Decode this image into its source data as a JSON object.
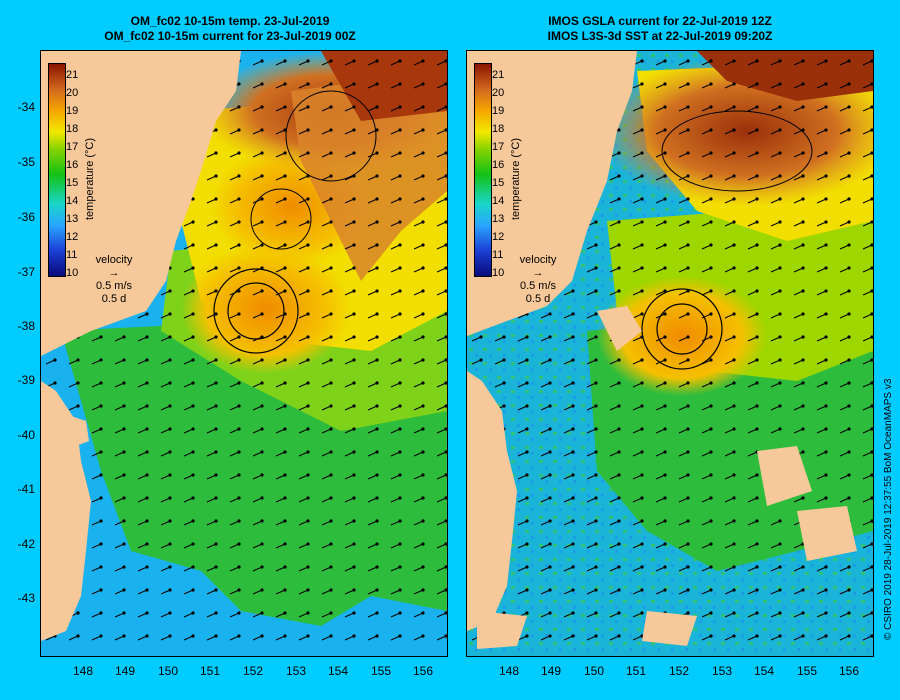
{
  "left_title": {
    "line1": "OM_fc02 10-15m temp. 23-Jul-2019",
    "line2": "OM_fc02 10-15m current for 23-Jul-2019 00Z"
  },
  "right_title": {
    "line1": "IMOS GSLA current for 22-Jul-2019 12Z",
    "line2": "IMOS L3S-3d SST at 22-Jul-2019 09:20Z"
  },
  "latitude_ticks": [
    "-34",
    "-35",
    "-36",
    "-37",
    "-38",
    "-39",
    "-40",
    "-41",
    "-42",
    "-43"
  ],
  "longitude_ticks": [
    "148",
    "149",
    "150",
    "151",
    "152",
    "153",
    "154",
    "155",
    "156"
  ],
  "colorbar": {
    "label": "temperature (°C)",
    "ticks": [
      "21",
      "20",
      "19",
      "18",
      "17",
      "16",
      "15",
      "14",
      "13",
      "12",
      "11",
      "10"
    ]
  },
  "velocity_legend": {
    "title": "velocity",
    "speed": "0.5 m/s",
    "duration": "0.5 d"
  },
  "credit": "© CSIRO 2019   28-Jul-2019 12:37:55 BoM OceanMAPS v3",
  "colors": {
    "background": "#00ccff",
    "land": "#f7c99a",
    "cold": "#14a8f0",
    "mid": "#22b844",
    "warm": "#f5b400",
    "hot": "#c85a10"
  }
}
